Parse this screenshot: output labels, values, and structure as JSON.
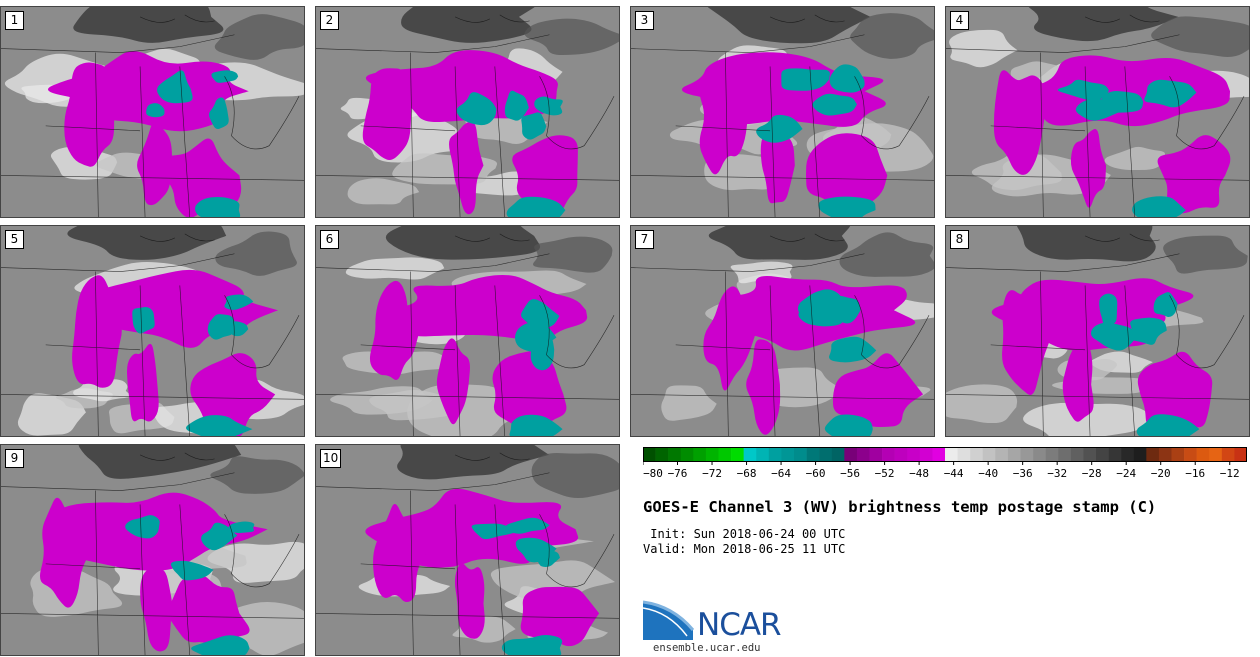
{
  "panels": [
    {
      "label": "1"
    },
    {
      "label": "2"
    },
    {
      "label": "3"
    },
    {
      "label": "4"
    },
    {
      "label": "5"
    },
    {
      "label": "6"
    },
    {
      "label": "7"
    },
    {
      "label": "8"
    },
    {
      "label": "9"
    },
    {
      "label": "10"
    }
  ],
  "colorbar": {
    "ticks": [
      "−80",
      "−76",
      "−72",
      "−68",
      "−64",
      "−60",
      "−56",
      "−52",
      "−48",
      "−44",
      "−40",
      "−36",
      "−32",
      "−28",
      "−24",
      "−20",
      "−16",
      "−12"
    ],
    "bins": [
      "#005000",
      "#006400",
      "#007800",
      "#008c00",
      "#00a000",
      "#00b400",
      "#00c800",
      "#00dc00",
      "#00c8c8",
      "#00b4b4",
      "#00a0a0",
      "#009696",
      "#008c8c",
      "#007878",
      "#006e6e",
      "#006464",
      "#780078",
      "#8c008c",
      "#a000a0",
      "#b400b4",
      "#be00be",
      "#c800c8",
      "#d200d2",
      "#e100e1",
      "#ececec",
      "#dedede",
      "#d0d0d0",
      "#c2c2c2",
      "#b4b4b4",
      "#a6a6a6",
      "#989898",
      "#8a8a8a",
      "#7c7c7c",
      "#6e6e6e",
      "#606060",
      "#525252",
      "#444444",
      "#363636",
      "#282828",
      "#1e1e1e",
      "#6e2a10",
      "#8c3414",
      "#aa4014",
      "#c84c14",
      "#dc5a10",
      "#e66414",
      "#d24614",
      "#c83214"
    ]
  },
  "title": "GOES-E Channel 3 (WV) brightness temp postage stamp (C)",
  "init": " Init: Sun 2018-06-24 00 UTC",
  "valid": "Valid: Mon 2018-06-25 11 UTC",
  "logo": {
    "text": "NCAR",
    "website": "ensemble.ucar.edu"
  },
  "colors": {
    "deep_convection": "#cc00cc",
    "coldest_tops": "#00a0a0",
    "background": "#8c8c8c"
  }
}
